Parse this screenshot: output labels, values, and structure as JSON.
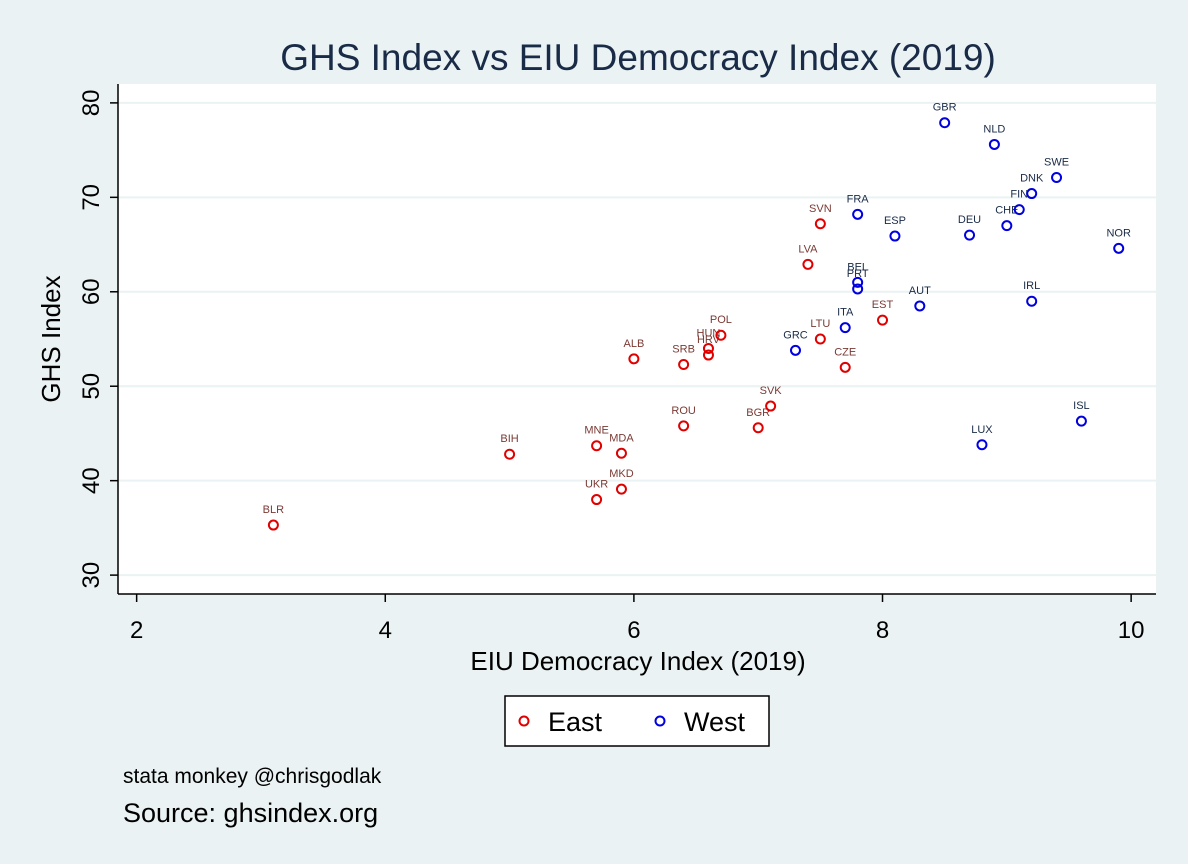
{
  "chart_data": {
    "type": "scatter",
    "title": "GHS Index vs EIU Democracy Index (2019)",
    "xlabel": "EIU Democracy Index (2019)",
    "ylabel": "GHS Index",
    "xlim": [
      1.85,
      10.2
    ],
    "ylim": [
      28.0,
      82.0
    ],
    "xticks": [
      2,
      4,
      6,
      8,
      10
    ],
    "yticks": [
      30,
      40,
      50,
      60,
      70,
      80
    ],
    "grid": "horizontal",
    "legend_position": "bottom",
    "series": [
      {
        "name": "East",
        "marker_color": "#e00000",
        "label_color": "#7a3a34",
        "points": [
          {
            "label": "BLR",
            "x": 3.1,
            "y": 35.3
          },
          {
            "label": "BIH",
            "x": 5.0,
            "y": 42.8
          },
          {
            "label": "MNE",
            "x": 5.7,
            "y": 43.7
          },
          {
            "label": "MDA",
            "x": 5.9,
            "y": 42.9
          },
          {
            "label": "UKR",
            "x": 5.7,
            "y": 38.0
          },
          {
            "label": "MKD",
            "x": 5.9,
            "y": 39.1
          },
          {
            "label": "ALB",
            "x": 6.0,
            "y": 52.9
          },
          {
            "label": "ROU",
            "x": 6.4,
            "y": 45.8
          },
          {
            "label": "SRB",
            "x": 6.4,
            "y": 52.3
          },
          {
            "label": "HUN",
            "x": 6.6,
            "y": 54.0
          },
          {
            "label": "HRV",
            "x": 6.6,
            "y": 53.3
          },
          {
            "label": "POL",
            "x": 6.7,
            "y": 55.4
          },
          {
            "label": "BGR",
            "x": 7.0,
            "y": 45.6
          },
          {
            "label": "SVK",
            "x": 7.1,
            "y": 47.9
          },
          {
            "label": "LVA",
            "x": 7.4,
            "y": 62.9
          },
          {
            "label": "SVN",
            "x": 7.5,
            "y": 67.2
          },
          {
            "label": "LTU",
            "x": 7.5,
            "y": 55.0
          },
          {
            "label": "CZE",
            "x": 7.7,
            "y": 52.0
          },
          {
            "label": "EST",
            "x": 8.0,
            "y": 57.0
          }
        ]
      },
      {
        "name": "West",
        "marker_color": "#0000e0",
        "label_color": "#1a2b47",
        "points": [
          {
            "label": "GRC",
            "x": 7.3,
            "y": 53.8
          },
          {
            "label": "ITA",
            "x": 7.7,
            "y": 56.2
          },
          {
            "label": "FRA",
            "x": 7.8,
            "y": 68.2
          },
          {
            "label": "BEL",
            "x": 7.8,
            "y": 61.0
          },
          {
            "label": "PRT",
            "x": 7.8,
            "y": 60.3
          },
          {
            "label": "ESP",
            "x": 8.1,
            "y": 65.9
          },
          {
            "label": "AUT",
            "x": 8.3,
            "y": 58.5
          },
          {
            "label": "GBR",
            "x": 8.5,
            "y": 77.9
          },
          {
            "label": "DEU",
            "x": 8.7,
            "y": 66.0
          },
          {
            "label": "LUX",
            "x": 8.8,
            "y": 43.8
          },
          {
            "label": "NLD",
            "x": 8.9,
            "y": 75.6
          },
          {
            "label": "CHE",
            "x": 9.0,
            "y": 67.0
          },
          {
            "label": "FIN",
            "x": 9.1,
            "y": 68.7
          },
          {
            "label": "DNK",
            "x": 9.2,
            "y": 70.4
          },
          {
            "label": "IRL",
            "x": 9.2,
            "y": 59.0
          },
          {
            "label": "SWE",
            "x": 9.4,
            "y": 72.1
          },
          {
            "label": "ISL",
            "x": 9.6,
            "y": 46.3
          },
          {
            "label": "NOR",
            "x": 9.9,
            "y": 64.6
          }
        ]
      }
    ]
  },
  "notes": {
    "credit": "stata monkey @chrisgodlak",
    "source": "Source: ghsindex.org"
  }
}
